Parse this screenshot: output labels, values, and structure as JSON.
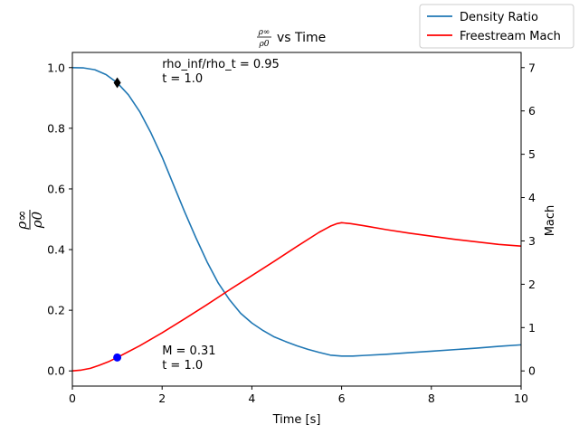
{
  "chart_data": {
    "type": "line",
    "title_suffix": "vs Time",
    "title_fraction": {
      "numerator": "ρ∞",
      "denominator": "ρ0"
    },
    "xlabel": "Time [s]",
    "ylabel_left": {
      "numerator": "ρ∞",
      "denominator": "ρ0"
    },
    "ylabel_right": "Mach",
    "xlim": [
      0,
      10
    ],
    "ylim_left": [
      -0.05,
      1.05
    ],
    "ylim_right": [
      -0.35,
      7.35
    ],
    "xticks": [
      "0",
      "2",
      "4",
      "6",
      "8",
      "10"
    ],
    "yticks_left": [
      "0.0",
      "0.2",
      "0.4",
      "0.6",
      "0.8",
      "1.0"
    ],
    "yticks_right": [
      "0",
      "1",
      "2",
      "3",
      "4",
      "5",
      "6",
      "7"
    ],
    "grid": false,
    "legend_placement": "top-right",
    "series": [
      {
        "name": "Density Ratio",
        "axis": "left",
        "color": "#1f77b4",
        "x": [
          0,
          0.25,
          0.5,
          0.75,
          1.0,
          1.25,
          1.5,
          1.75,
          2.0,
          2.25,
          2.5,
          2.75,
          3.0,
          3.25,
          3.5,
          3.75,
          4.0,
          4.25,
          4.5,
          4.75,
          5.0,
          5.25,
          5.5,
          5.75,
          6.0,
          6.25,
          6.5,
          7.0,
          7.5,
          8.0,
          8.5,
          9.0,
          9.5,
          10.0
        ],
        "y": [
          1.0,
          0.999,
          0.993,
          0.977,
          0.95,
          0.91,
          0.855,
          0.785,
          0.705,
          0.615,
          0.525,
          0.44,
          0.36,
          0.29,
          0.235,
          0.19,
          0.158,
          0.133,
          0.112,
          0.097,
          0.083,
          0.071,
          0.061,
          0.052,
          0.049,
          0.049,
          0.051,
          0.055,
          0.06,
          0.065,
          0.07,
          0.075,
          0.081,
          0.086
        ]
      },
      {
        "name": "Freestream Mach",
        "axis": "right",
        "color": "#ff0000",
        "x": [
          0,
          0.2,
          0.4,
          0.6,
          0.8,
          1.0,
          1.5,
          2.0,
          2.5,
          3.0,
          3.5,
          4.0,
          4.5,
          5.0,
          5.5,
          5.75,
          5.9,
          6.0,
          6.2,
          6.5,
          7.0,
          7.5,
          8.0,
          8.5,
          9.0,
          9.5,
          10.0
        ],
        "y": [
          0.0,
          0.02,
          0.06,
          0.13,
          0.21,
          0.31,
          0.58,
          0.88,
          1.2,
          1.53,
          1.87,
          2.2,
          2.53,
          2.87,
          3.2,
          3.34,
          3.4,
          3.42,
          3.4,
          3.35,
          3.26,
          3.18,
          3.11,
          3.04,
          2.98,
          2.92,
          2.88
        ]
      }
    ],
    "markers": [
      {
        "name": "density-marker",
        "axis": "left",
        "x": 1.0,
        "y": 0.95,
        "shape": "diamond",
        "color": "#000000"
      },
      {
        "name": "mach-marker",
        "axis": "right",
        "x": 1.0,
        "y": 0.31,
        "shape": "circle",
        "color": "#0000ff"
      }
    ],
    "annotations": [
      {
        "name": "density-annotation",
        "axis": "left",
        "x": 2.0,
        "y": 1.0,
        "lines": [
          "rho_inf/rho_t = 0.95",
          "t = 1.0"
        ]
      },
      {
        "name": "mach-annotation",
        "axis": "left",
        "x": 2.0,
        "y": 0.055,
        "lines": [
          "M = 0.31",
          "t = 1.0"
        ]
      }
    ]
  }
}
